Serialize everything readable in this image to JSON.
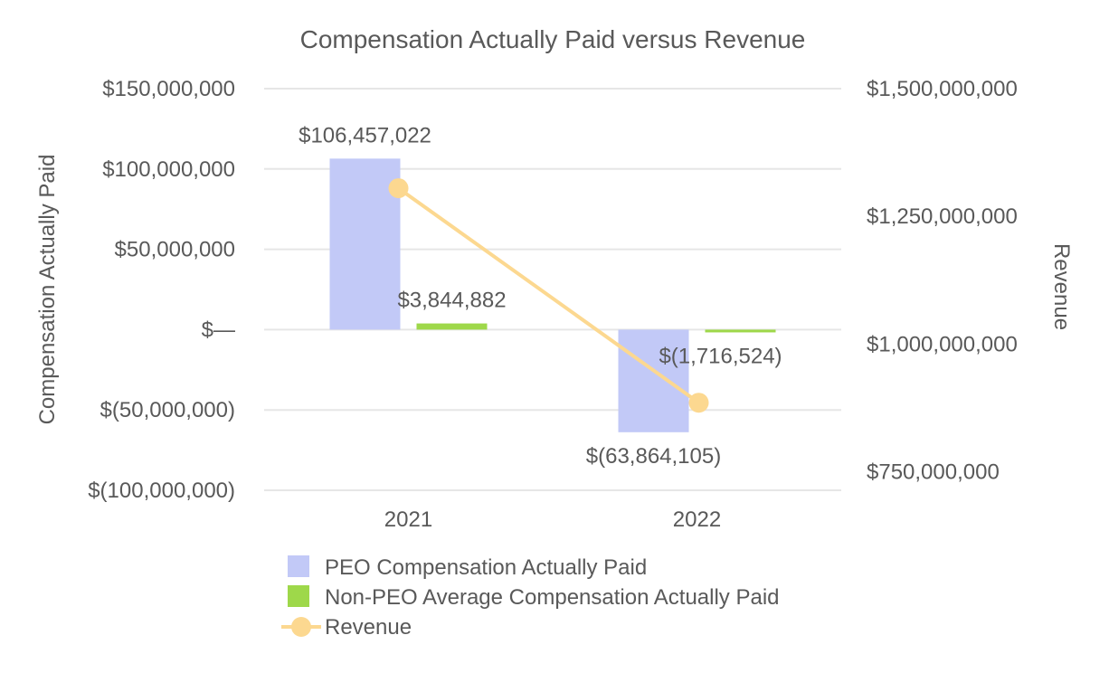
{
  "chart_data": {
    "type": "bar",
    "title": "Compensation Actually Paid versus Revenue",
    "categories": [
      "2021",
      "2022"
    ],
    "y_left": {
      "label": "Compensation Actually Paid",
      "ylim": [
        -100000000,
        150000000
      ],
      "ticks": [
        150000000,
        100000000,
        50000000,
        0,
        -50000000,
        -100000000
      ],
      "tick_labels": [
        "$150,000,000",
        "$100,000,000",
        "$50,000,000",
        "$—",
        "$(50,000,000)",
        "$(100,000,000)"
      ]
    },
    "y_right": {
      "label": "Revenue",
      "ylim": [
        625000000,
        1500000000
      ],
      "ticks": [
        1500000000,
        1250000000,
        1000000000,
        750000000
      ],
      "tick_labels": [
        "$1,500,000,000",
        "$1,250,000,000",
        "$1,000,000,000",
        "$750,000,000"
      ]
    },
    "series": [
      {
        "name": "PEO Compensation Actually Paid",
        "type": "bar",
        "axis": "left",
        "color": "#c2c9f7",
        "values": [
          106457022,
          -63864105
        ],
        "data_labels": [
          "$106,457,022",
          "$(63,864,105)"
        ]
      },
      {
        "name": "Non-PEO Average Compensation Actually Paid",
        "type": "bar",
        "axis": "left",
        "color": "#9ed84a",
        "values": [
          3844882,
          -1716524
        ],
        "data_labels": [
          "$3,844,882",
          "$(1,716,524)"
        ]
      },
      {
        "name": "Revenue",
        "type": "line",
        "axis": "right",
        "color": "#fcd890",
        "values": [
          1305000000,
          885000000
        ]
      }
    ],
    "grid": true,
    "legend_position": "bottom"
  }
}
